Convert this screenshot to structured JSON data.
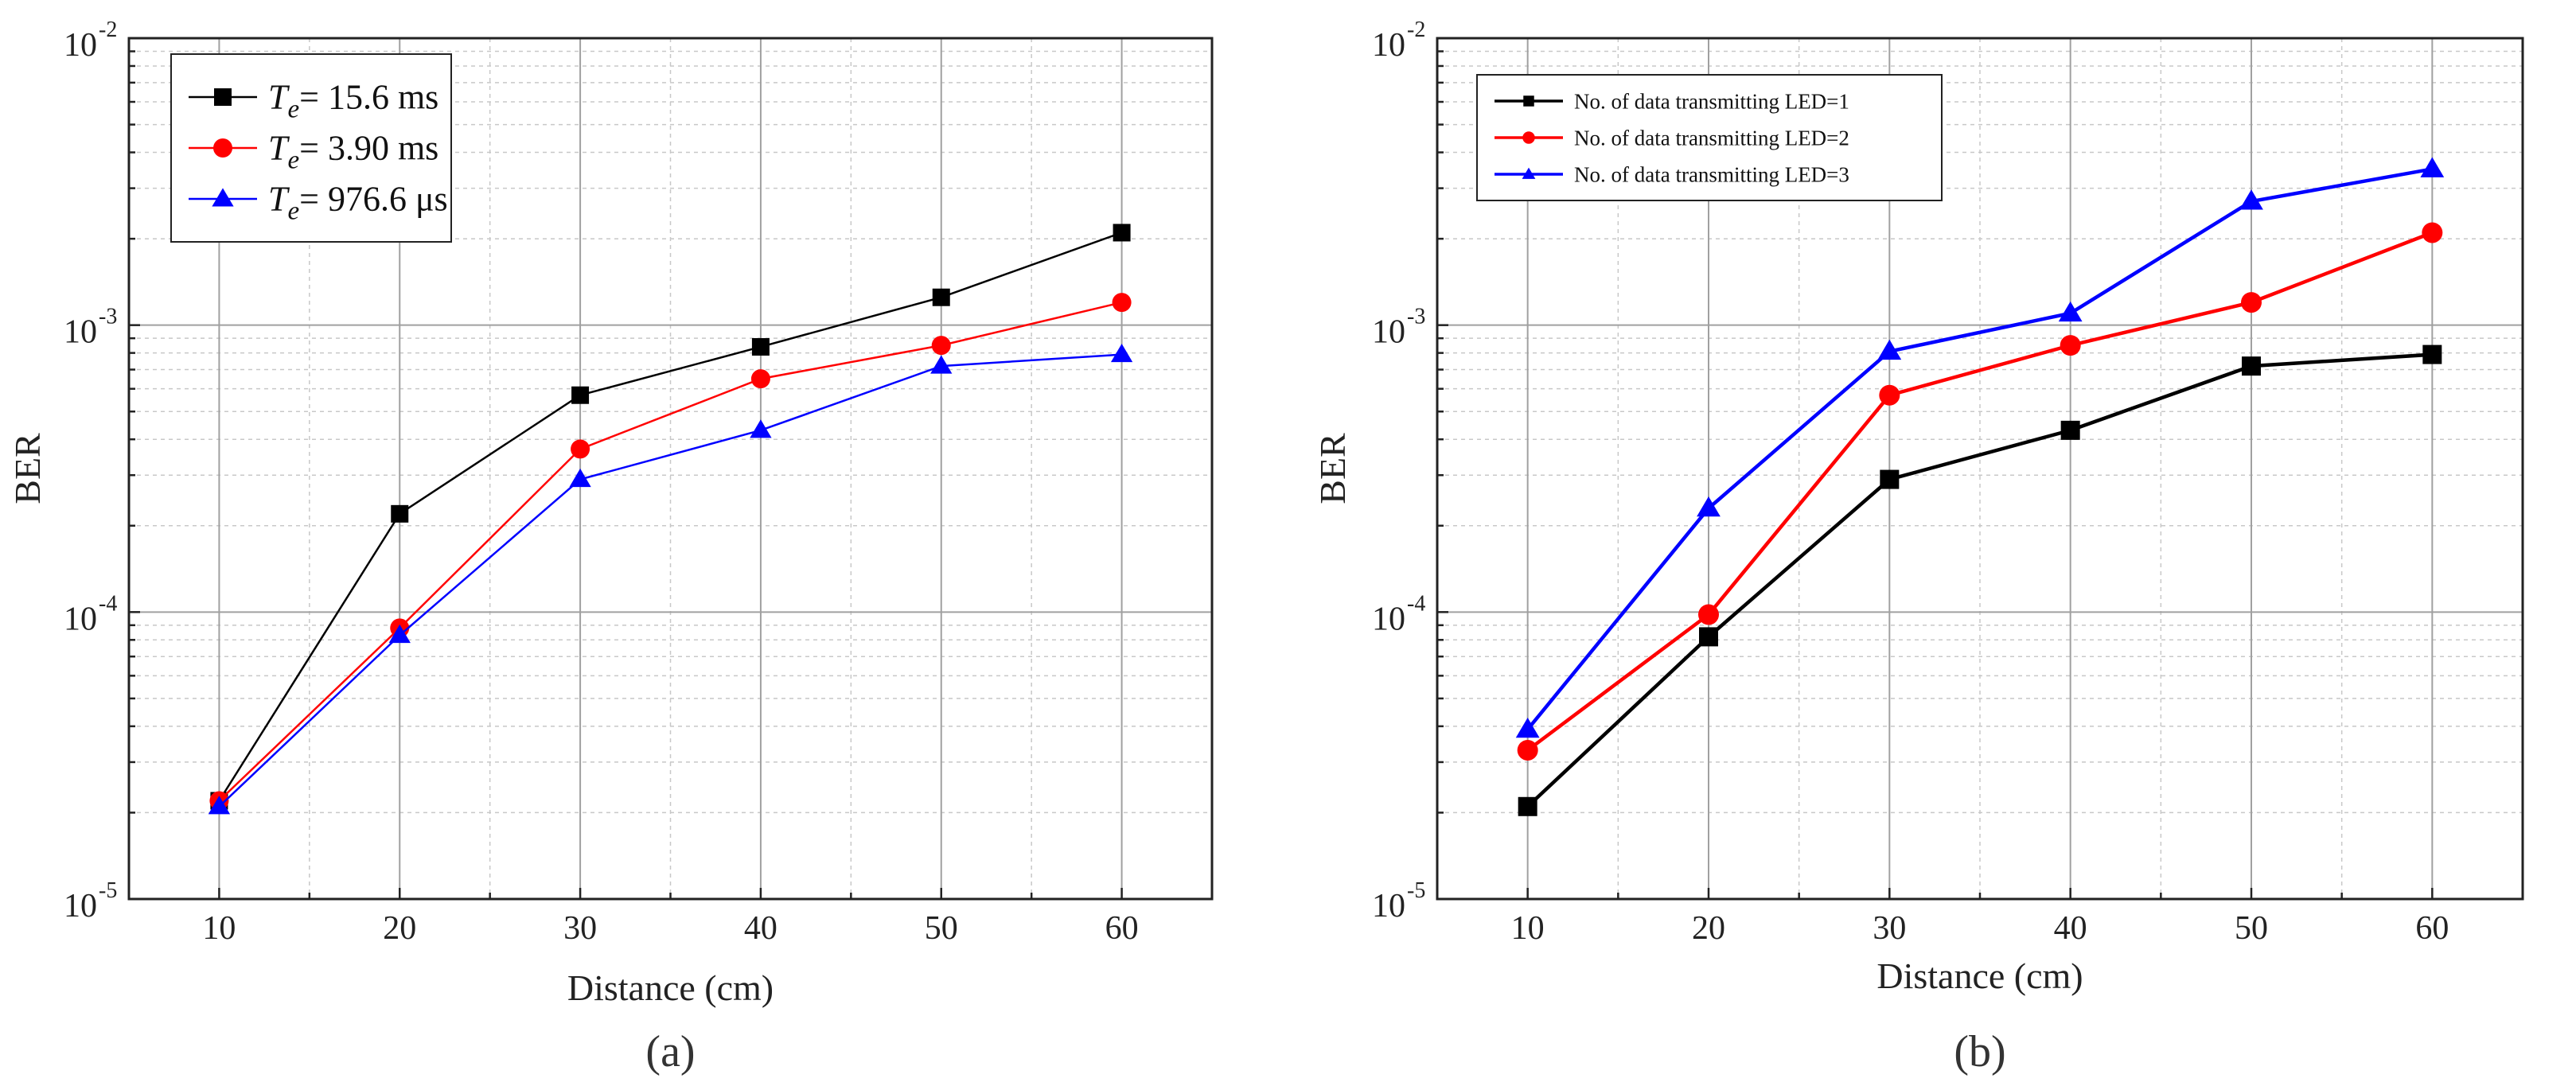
{
  "chart_data": [
    {
      "type": "line",
      "panel_label": "(a)",
      "title": "",
      "xlabel": "Distance (cm)",
      "ylabel": "BER",
      "x": [
        10,
        20,
        30,
        40,
        50,
        60
      ],
      "x_ticks": [
        "10",
        "20",
        "30",
        "40",
        "50",
        "60"
      ],
      "xlim": [
        5,
        65
      ],
      "ylim": [
        1e-05,
        0.01
      ],
      "y_scale": "log",
      "y_ticks": [
        {
          "value": 1e-05,
          "base": "10",
          "exp": "-5"
        },
        {
          "value": 0.0001,
          "base": "10",
          "exp": "-4"
        },
        {
          "value": 0.001,
          "base": "10",
          "exp": "-3"
        },
        {
          "value": 0.01,
          "base": "10",
          "exp": "-2"
        }
      ],
      "grid": true,
      "legend_position": "top-left",
      "series": [
        {
          "name": "T_e= 15.6  ms",
          "legend_symbol": "T",
          "legend_subscript": "e",
          "legend_rest": "= 15.6  ms",
          "color": "#000000",
          "marker": "square",
          "values": [
            2.2e-05,
            0.00022,
            0.00057,
            0.00084,
            0.00125,
            0.0021
          ]
        },
        {
          "name": "T_e= 3.90  ms",
          "legend_symbol": "T",
          "legend_subscript": "e",
          "legend_rest": "= 3.90  ms",
          "color": "#ff0000",
          "marker": "circle",
          "values": [
            2.2e-05,
            8.8e-05,
            0.00037,
            0.00065,
            0.00085,
            0.0012
          ]
        },
        {
          "name": "T_e= 976.6 μs",
          "legend_symbol": "T",
          "legend_subscript": "e",
          "legend_rest": "= 976.6 μs",
          "color": "#0000ff",
          "marker": "triangle",
          "values": [
            2.1e-05,
            8.3e-05,
            0.00029,
            0.00043,
            0.00072,
            0.00079
          ]
        }
      ]
    },
    {
      "type": "line",
      "panel_label": "(b)",
      "title": "",
      "xlabel": "Distance (cm)",
      "ylabel": "BER",
      "x": [
        10,
        20,
        30,
        40,
        50,
        60
      ],
      "x_ticks": [
        "10",
        "20",
        "30",
        "40",
        "50",
        "60"
      ],
      "xlim": [
        5,
        65
      ],
      "ylim": [
        1e-05,
        0.01
      ],
      "y_scale": "log",
      "y_ticks": [
        {
          "value": 1e-05,
          "base": "10",
          "exp": "-5"
        },
        {
          "value": 0.0001,
          "base": "10",
          "exp": "-4"
        },
        {
          "value": 0.001,
          "base": "10",
          "exp": "-3"
        },
        {
          "value": 0.01,
          "base": "10",
          "exp": "-2"
        }
      ],
      "grid": true,
      "legend_position": "top-left",
      "series": [
        {
          "name": "No. of data transmitting LED=1",
          "color": "#000000",
          "marker": "square",
          "values": [
            2.1e-05,
            8.2e-05,
            0.00029,
            0.00043,
            0.00072,
            0.00079
          ]
        },
        {
          "name": "No. of data transmitting LED=2",
          "color": "#ff0000",
          "marker": "circle",
          "values": [
            3.3e-05,
            9.8e-05,
            0.00057,
            0.00085,
            0.0012,
            0.0021
          ]
        },
        {
          "name": "No. of data transmitting LED=3",
          "color": "#0000ff",
          "marker": "triangle",
          "values": [
            3.9e-05,
            0.00023,
            0.00081,
            0.0011,
            0.0027,
            0.0035
          ]
        }
      ]
    }
  ]
}
